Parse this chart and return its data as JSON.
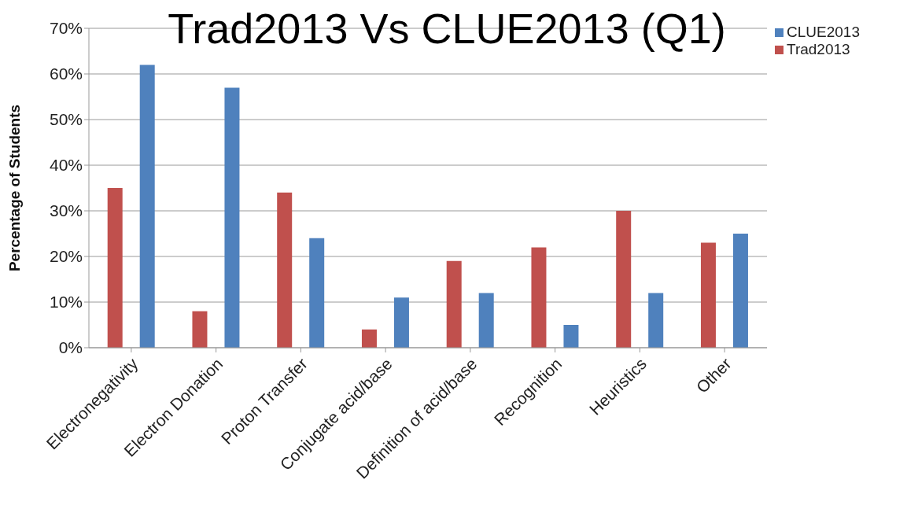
{
  "chart_data": {
    "type": "bar",
    "title": "Trad2013 Vs CLUE2013 (Q1)",
    "ylabel": "Percentage of Students",
    "categories": [
      "Electronegativity",
      "Electron Donation",
      "Proton Transfer",
      "Conjugate acid/base",
      "Definition of acid/base",
      "Recognition",
      "Heuristics",
      "Other"
    ],
    "series": [
      {
        "name": "Trad2013",
        "color": "#c0504d",
        "values": [
          35,
          8,
          34,
          4,
          19,
          22,
          30,
          23
        ]
      },
      {
        "name": "CLUE2013",
        "color": "#4f81bd",
        "values": [
          62,
          57,
          24,
          11,
          12,
          5,
          12,
          25
        ]
      }
    ],
    "ylim": [
      0,
      70
    ],
    "yticks": [
      {
        "value": 0,
        "label": "0%"
      },
      {
        "value": 10,
        "label": "10%"
      },
      {
        "value": 20,
        "label": "20%"
      },
      {
        "value": 30,
        "label": "30%"
      },
      {
        "value": 40,
        "label": "40%"
      },
      {
        "value": 50,
        "label": "50%"
      },
      {
        "value": 60,
        "label": "60%"
      },
      {
        "value": 70,
        "label": "70%"
      }
    ],
    "grid": "y",
    "legend": "top right"
  }
}
